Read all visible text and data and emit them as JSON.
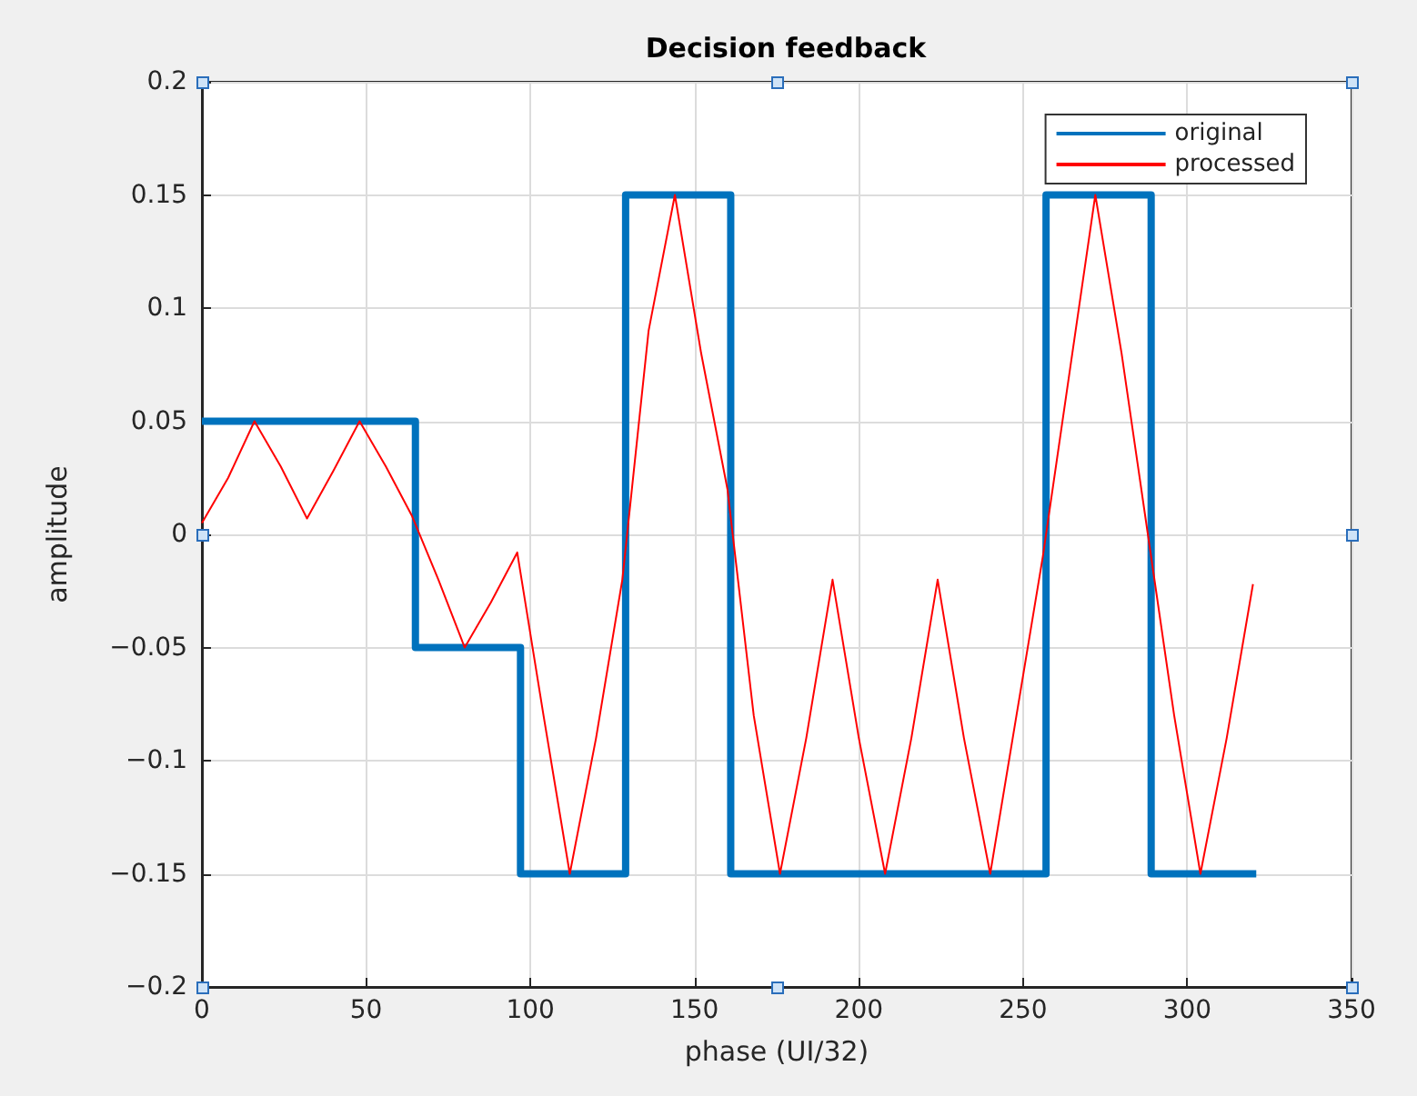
{
  "chart_data": {
    "type": "line",
    "title": "Decision feedback",
    "xlabel": "phase (UI/32)",
    "ylabel": "amplitude",
    "xlim": [
      0,
      350
    ],
    "xticks": [
      0,
      50,
      100,
      150,
      200,
      250,
      300,
      350
    ],
    "ylim": [
      -0.2,
      0.2
    ],
    "yticks": [
      -0.2,
      -0.15,
      -0.1,
      -0.05,
      0,
      0.05,
      0.1,
      0.15,
      0.2
    ],
    "grid": true,
    "legend": "top right",
    "marker": "none",
    "series": [
      {
        "name": "original",
        "type": "step",
        "color": "#0072bd",
        "x": [
          0,
          65,
          97,
          129,
          161,
          257,
          289,
          321
        ],
        "values": [
          0.05,
          -0.05,
          -0.15,
          0.15,
          -0.15,
          0.15,
          -0.15,
          -0.15
        ]
      },
      {
        "name": "processed",
        "color": "#ff0000",
        "x": [
          0,
          8,
          16,
          24,
          32,
          40,
          48,
          56,
          64,
          72,
          80,
          88,
          96,
          104,
          112,
          120,
          128,
          136,
          144,
          152,
          160,
          168,
          176,
          184,
          192,
          200,
          208,
          216,
          224,
          232,
          240,
          248,
          256,
          264,
          272,
          280,
          288,
          296,
          304,
          312,
          320
        ],
        "values": [
          0.005,
          0.025,
          0.05,
          0.03,
          0.007,
          0.028,
          0.05,
          0.03,
          0.008,
          -0.02,
          -0.05,
          -0.03,
          -0.008,
          -0.08,
          -0.15,
          -0.09,
          -0.02,
          0.09,
          0.15,
          0.08,
          0.02,
          -0.08,
          -0.15,
          -0.09,
          -0.02,
          -0.09,
          -0.15,
          -0.09,
          -0.02,
          -0.09,
          -0.15,
          -0.08,
          -0.01,
          0.07,
          0.15,
          0.08,
          0.0,
          -0.08,
          -0.15,
          -0.09,
          -0.022
        ]
      }
    ]
  }
}
